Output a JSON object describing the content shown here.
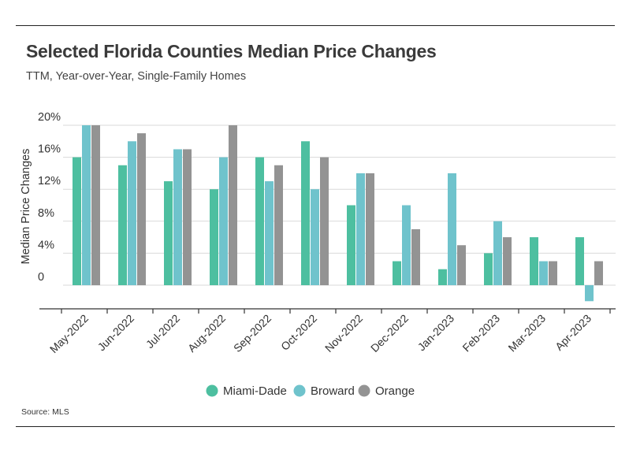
{
  "header": {
    "title": "Selected Florida Counties Median Price Changes",
    "subtitle": "TTM, Year-over-Year, Single-Family Homes"
  },
  "footer": {
    "source": "Source: MLS"
  },
  "colors": {
    "miami_dade": "#4dbfa0",
    "broward": "#6fc3cc",
    "orange": "#939393",
    "grid": "#d9d9d9",
    "axis": "#333333"
  },
  "chart_data": {
    "type": "bar",
    "title": "Selected Florida Counties Median Price Changes",
    "subtitle": "TTM, Year-over-Year, Single-Family Homes",
    "xlabel": "",
    "ylabel": "Median Price Changes",
    "ylim": [
      -2,
      20
    ],
    "yticks": [
      0,
      4,
      8,
      12,
      16,
      20
    ],
    "ytick_labels": [
      "0",
      "4%",
      "8%",
      "12%",
      "16%",
      "20%"
    ],
    "grid": true,
    "legend_position": "bottom-center",
    "categories": [
      "May-2022",
      "Jun-2022",
      "Jul-2022",
      "Aug-2022",
      "Sep-2022",
      "Oct-2022",
      "Nov-2022",
      "Dec-2022",
      "Jan-2023",
      "Feb-2023",
      "Mar-2023",
      "Apr-2023"
    ],
    "series": [
      {
        "name": "Miami-Dade",
        "values": [
          16,
          15,
          13,
          12,
          16,
          18,
          10,
          3,
          2,
          4,
          6,
          6
        ]
      },
      {
        "name": "Broward",
        "values": [
          20,
          18,
          17,
          16,
          13,
          12,
          14,
          10,
          14,
          8,
          3,
          -2
        ]
      },
      {
        "name": "Orange",
        "values": [
          20,
          19,
          17,
          20,
          15,
          16,
          14,
          7,
          5,
          6,
          3,
          3
        ]
      }
    ]
  }
}
